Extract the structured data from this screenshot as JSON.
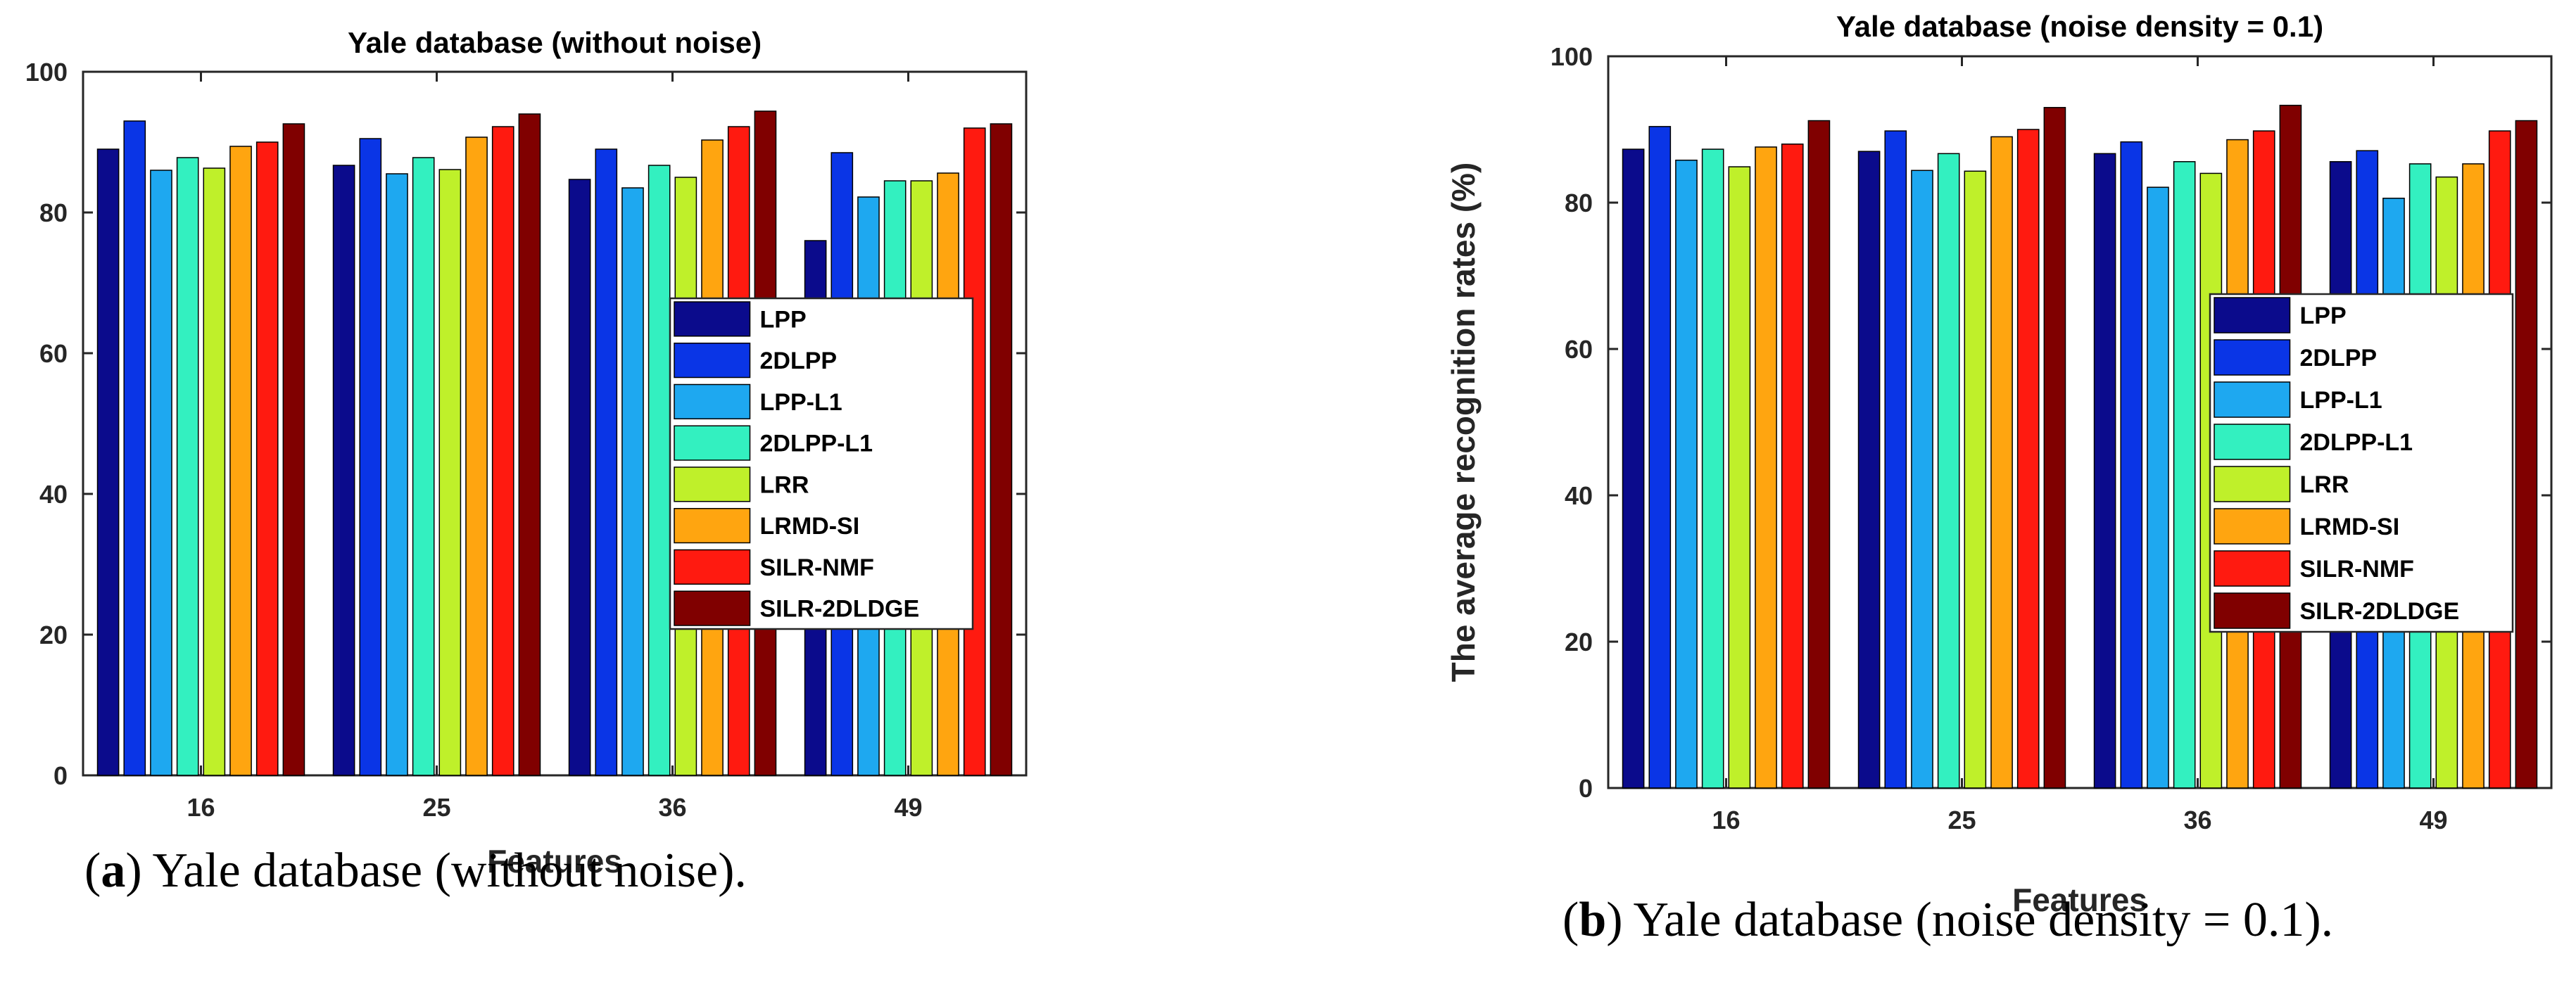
{
  "chart_data": [
    {
      "type": "bar",
      "title": "Yale database (without noise)",
      "xlabel": "Features",
      "ylabel": "",
      "ylim": [
        0,
        100
      ],
      "yticks": [
        0,
        20,
        40,
        60,
        80,
        100
      ],
      "categories": [
        "16",
        "25",
        "36",
        "49"
      ],
      "series": [
        {
          "name": "LPP",
          "values": [
            89,
            86.7,
            84.7,
            76
          ],
          "color": "#0b0b8c"
        },
        {
          "name": "2DLPP",
          "values": [
            93,
            90.5,
            89,
            88.5
          ],
          "color": "#0a35e6"
        },
        {
          "name": "LPP-L1",
          "values": [
            86,
            85.5,
            83.5,
            82.2
          ],
          "color": "#1ea8f0"
        },
        {
          "name": "2DLPP-L1",
          "values": [
            87.8,
            87.8,
            86.7,
            84.5
          ],
          "color": "#33f0c0"
        },
        {
          "name": "LRR",
          "values": [
            86.3,
            86.1,
            85,
            84.5
          ],
          "color": "#bff02a"
        },
        {
          "name": "LRMD-SI",
          "values": [
            89.4,
            90.7,
            90.3,
            85.6
          ],
          "color": "#ffa510"
        },
        {
          "name": "SILR-NMF",
          "values": [
            90,
            92.2,
            92.2,
            92
          ],
          "color": "#ff1a10"
        },
        {
          "name": "SILR-2DLDGE",
          "values": [
            92.6,
            94,
            94.4,
            92.6
          ],
          "color": "#800000"
        }
      ]
    },
    {
      "type": "bar",
      "title": "Yale database (noise density = 0.1)",
      "xlabel": "Features",
      "ylabel": "The average recognition rates (%)",
      "ylim": [
        0,
        100
      ],
      "yticks": [
        0,
        20,
        40,
        60,
        80,
        100
      ],
      "categories": [
        "16",
        "25",
        "36",
        "49"
      ],
      "series": [
        {
          "name": "LPP",
          "values": [
            87.3,
            87,
            86.7,
            85.6
          ],
          "color": "#0b0b8c"
        },
        {
          "name": "2DLPP",
          "values": [
            90.4,
            89.8,
            88.3,
            87.1
          ],
          "color": "#0a35e6"
        },
        {
          "name": "LPP-L1",
          "values": [
            85.8,
            84.4,
            82.1,
            80.6
          ],
          "color": "#1ea8f0"
        },
        {
          "name": "2DLPP-L1",
          "values": [
            87.3,
            86.7,
            85.6,
            85.3
          ],
          "color": "#33f0c0"
        },
        {
          "name": "LRR",
          "values": [
            84.9,
            84.3,
            84,
            83.5
          ],
          "color": "#bff02a"
        },
        {
          "name": "LRMD-SI",
          "values": [
            87.6,
            89,
            88.6,
            85.3
          ],
          "color": "#ffa510"
        },
        {
          "name": "SILR-NMF",
          "values": [
            88,
            90,
            89.8,
            89.8
          ],
          "color": "#ff1a10"
        },
        {
          "name": "SILR-2DLDGE",
          "values": [
            91.2,
            93,
            93.3,
            91.2
          ],
          "color": "#800000"
        }
      ]
    }
  ],
  "captions": [
    {
      "letter": "a",
      "text": ") Yale database (without noise)."
    },
    {
      "letter": "b",
      "text": ") Yale database (noise density = 0.1)."
    }
  ]
}
